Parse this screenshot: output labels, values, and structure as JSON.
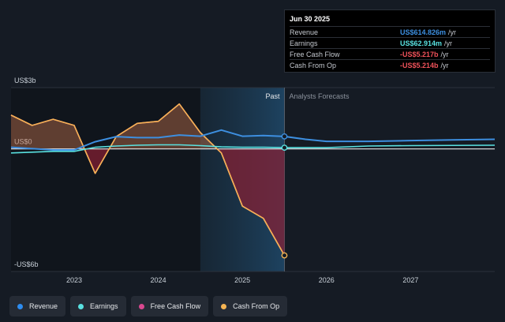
{
  "tooltip": {
    "date": "Jun 30 2025",
    "rows": [
      {
        "label": "Revenue",
        "value": "US$614.826m",
        "unit": "/yr",
        "color": "#3d8fe0"
      },
      {
        "label": "Earnings",
        "value": "US$62.914m",
        "unit": "/yr",
        "color": "#59e1e0"
      },
      {
        "label": "Free Cash Flow",
        "value": "-US$5.217b",
        "unit": "/yr",
        "color": "#f0525a"
      },
      {
        "label": "Cash From Op",
        "value": "-US$5.214b",
        "unit": "/yr",
        "color": "#f0525a"
      }
    ]
  },
  "legend": [
    {
      "label": "Revenue",
      "color": "#2d8cf0"
    },
    {
      "label": "Earnings",
      "color": "#59e1e0"
    },
    {
      "label": "Free Cash Flow",
      "color": "#d9488f"
    },
    {
      "label": "Cash From Op",
      "color": "#f5b453"
    }
  ],
  "chart_data": {
    "type": "line",
    "title": "",
    "y_top_label": "US$3b",
    "y_zero_label": "US$0",
    "y_bottom_label": "-US$6b",
    "ylim": [
      -6,
      3
    ],
    "xlim": [
      2022.25,
      2028.0
    ],
    "x_ticks": [
      {
        "label": "2023",
        "value": 2023.0
      },
      {
        "label": "2024",
        "value": 2024.0
      },
      {
        "label": "2025",
        "value": 2025.0
      },
      {
        "label": "2026",
        "value": 2026.0
      },
      {
        "label": "2027",
        "value": 2027.0
      }
    ],
    "past_label": "Past",
    "forecast_label": "Analysts Forecasts",
    "divider_x": 2025.5,
    "highlight_start": 2024.5,
    "series": [
      {
        "name": "Revenue",
        "color": "#3d8fe0",
        "points": [
          [
            2022.25,
            0.08
          ],
          [
            2022.75,
            -0.05
          ],
          [
            2023.0,
            -0.05
          ],
          [
            2023.25,
            0.35
          ],
          [
            2023.5,
            0.6
          ],
          [
            2023.75,
            0.55
          ],
          [
            2024.0,
            0.55
          ],
          [
            2024.25,
            0.68
          ],
          [
            2024.5,
            0.62
          ],
          [
            2024.75,
            0.92
          ],
          [
            2025.0,
            0.62
          ],
          [
            2025.25,
            0.65
          ],
          [
            2025.5,
            0.61
          ],
          [
            2025.75,
            0.47
          ],
          [
            2026.0,
            0.37
          ],
          [
            2026.5,
            0.37
          ],
          [
            2027.0,
            0.41
          ],
          [
            2027.5,
            0.44
          ],
          [
            2028.0,
            0.47
          ]
        ],
        "marker": [
          2025.5,
          0.61
        ]
      },
      {
        "name": "Earnings",
        "color": "#59e1e0",
        "points": [
          [
            2022.25,
            -0.2
          ],
          [
            2022.75,
            -0.12
          ],
          [
            2023.0,
            -0.12
          ],
          [
            2023.25,
            0.08
          ],
          [
            2023.5,
            0.14
          ],
          [
            2023.75,
            0.18
          ],
          [
            2024.0,
            0.2
          ],
          [
            2024.25,
            0.2
          ],
          [
            2024.5,
            0.16
          ],
          [
            2024.75,
            0.1
          ],
          [
            2025.0,
            0.08
          ],
          [
            2025.25,
            0.08
          ],
          [
            2025.5,
            0.06
          ],
          [
            2026.0,
            0.06
          ],
          [
            2026.5,
            0.14
          ],
          [
            2027.0,
            0.16
          ],
          [
            2028.0,
            0.18
          ]
        ],
        "marker": [
          2025.5,
          0.06
        ]
      },
      {
        "name": "Free Cash Flow",
        "color": "#d9488f",
        "points": [
          [
            2022.25,
            1.65
          ],
          [
            2022.5,
            1.15
          ],
          [
            2022.75,
            1.45
          ],
          [
            2023.0,
            1.15
          ],
          [
            2023.25,
            -1.2
          ],
          [
            2023.5,
            0.6
          ],
          [
            2023.75,
            1.25
          ],
          [
            2024.0,
            1.35
          ],
          [
            2024.25,
            2.2
          ],
          [
            2024.5,
            0.8
          ],
          [
            2024.75,
            -0.2
          ],
          [
            2025.0,
            -2.8
          ],
          [
            2025.25,
            -3.4
          ],
          [
            2025.5,
            -5.217
          ]
        ],
        "marker": [
          2025.5,
          -5.217
        ]
      },
      {
        "name": "Cash From Op",
        "color": "#f5b453",
        "points": [
          [
            2022.25,
            1.65
          ],
          [
            2022.5,
            1.15
          ],
          [
            2022.75,
            1.45
          ],
          [
            2023.0,
            1.15
          ],
          [
            2023.25,
            -1.2
          ],
          [
            2023.5,
            0.6
          ],
          [
            2023.75,
            1.25
          ],
          [
            2024.0,
            1.35
          ],
          [
            2024.25,
            2.2
          ],
          [
            2024.5,
            0.8
          ],
          [
            2024.75,
            -0.2
          ],
          [
            2025.0,
            -2.8
          ],
          [
            2025.25,
            -3.4
          ],
          [
            2025.5,
            -5.214
          ]
        ],
        "marker": [
          2025.5,
          -5.214
        ]
      }
    ]
  }
}
